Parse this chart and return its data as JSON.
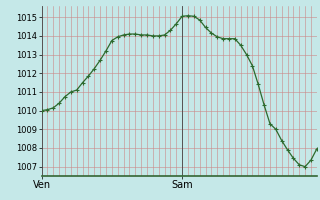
{
  "x_values": [
    0,
    1,
    2,
    3,
    4,
    5,
    6,
    7,
    8,
    9,
    10,
    11,
    12,
    13,
    14,
    15,
    16,
    17,
    18,
    19,
    20,
    21,
    22,
    23,
    24,
    25,
    26,
    27,
    28,
    29,
    30,
    31,
    32,
    33,
    34,
    35,
    36,
    37,
    38,
    39,
    40,
    41,
    42,
    43,
    44,
    45,
    46,
    47
  ],
  "y_values": [
    1010.0,
    1010.05,
    1010.15,
    1010.4,
    1010.75,
    1011.0,
    1011.1,
    1011.5,
    1011.85,
    1012.25,
    1012.7,
    1013.2,
    1013.75,
    1013.95,
    1014.05,
    1014.1,
    1014.1,
    1014.05,
    1014.05,
    1014.0,
    1014.0,
    1014.05,
    1014.3,
    1014.65,
    1015.05,
    1015.08,
    1015.05,
    1014.85,
    1014.45,
    1014.15,
    1013.95,
    1013.85,
    1013.85,
    1013.85,
    1013.5,
    1013.0,
    1012.4,
    1011.4,
    1010.3,
    1009.3,
    1009.0,
    1008.4,
    1007.9,
    1007.45,
    1007.1,
    1007.0,
    1007.35,
    1007.95
  ],
  "ven_x": 0,
  "sam_x": 24,
  "xlim_min": 0,
  "xlim_max": 47,
  "ylim_min": 1006.5,
  "ylim_max": 1015.6,
  "yticks": [
    1007,
    1008,
    1009,
    1010,
    1011,
    1012,
    1013,
    1014,
    1015
  ],
  "line_color": "#2d6a2d",
  "bg_color": "#c5e8e8",
  "vgrid_color": "#cc8888",
  "hgrid_color": "#cc8888",
  "day_line_color": "#444444",
  "label_ven": "Ven",
  "label_sam": "Sam",
  "label_fontsize": 7,
  "tick_fontsize": 6,
  "n_vgrid": 48,
  "bottom_bar_color": "#336633",
  "bottom_bar_height": 0.012
}
